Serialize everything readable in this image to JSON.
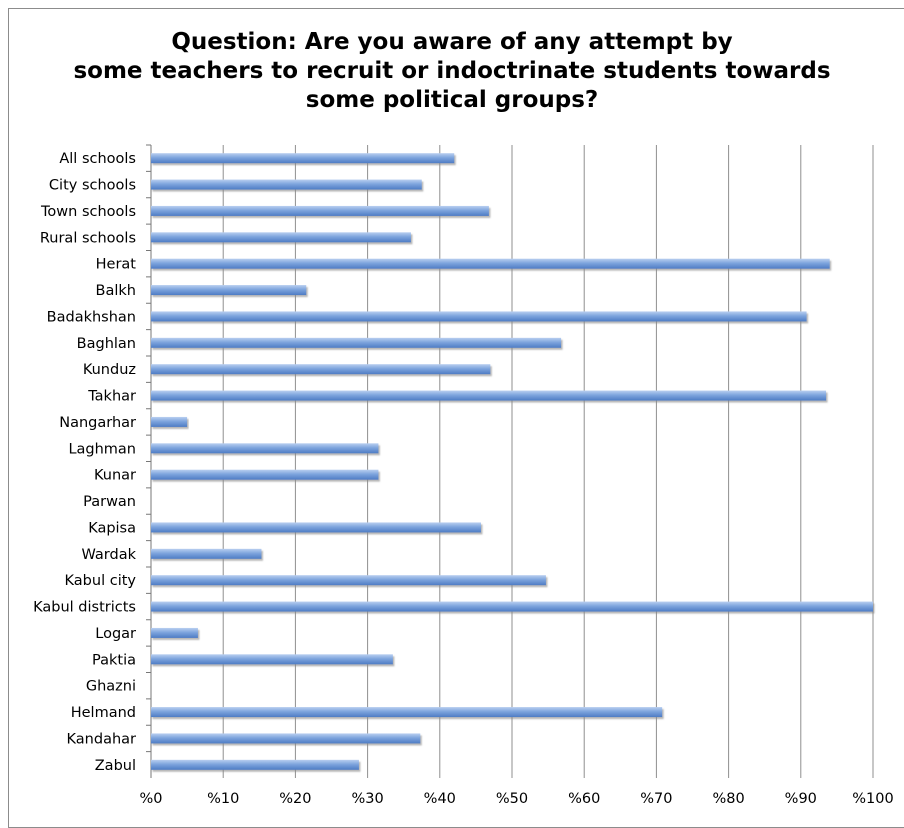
{
  "chart_data": {
    "type": "bar",
    "orientation": "horizontal",
    "title": "Question: Are you aware of any attempt by some teachers to recruit or indoctrinate students towards some political groups?",
    "categories": [
      "All schools",
      "City schools",
      "Town schools",
      "Rural schools",
      "Herat",
      "Balkh",
      "Badakhshan",
      "Baghlan",
      "Kunduz",
      "Takhar",
      "Nangarhar",
      "Laghman",
      "Kunar",
      "Parwan",
      "Kapisa",
      "Wardak",
      "Kabul city",
      "Kabul districts",
      "Logar",
      "Paktia",
      "Ghazni",
      "Helmand",
      "Kandahar",
      "Zabul"
    ],
    "values": [
      42,
      37.5,
      46.8,
      36,
      94,
      21.5,
      90.8,
      56.8,
      47,
      93.5,
      5,
      31.5,
      31.5,
      0,
      45.7,
      15.3,
      54.7,
      100,
      6.5,
      33.5,
      0,
      70.8,
      37.3,
      28.8
    ],
    "x_ticks": [
      "%0",
      "%10",
      "%20",
      "%30",
      "%40",
      "%50",
      "%60",
      "%70",
      "%80",
      "%90",
      "%100"
    ],
    "xlim": [
      0,
      100
    ],
    "grid": true,
    "legend": "none",
    "bar_color": "#6f9ad8"
  }
}
